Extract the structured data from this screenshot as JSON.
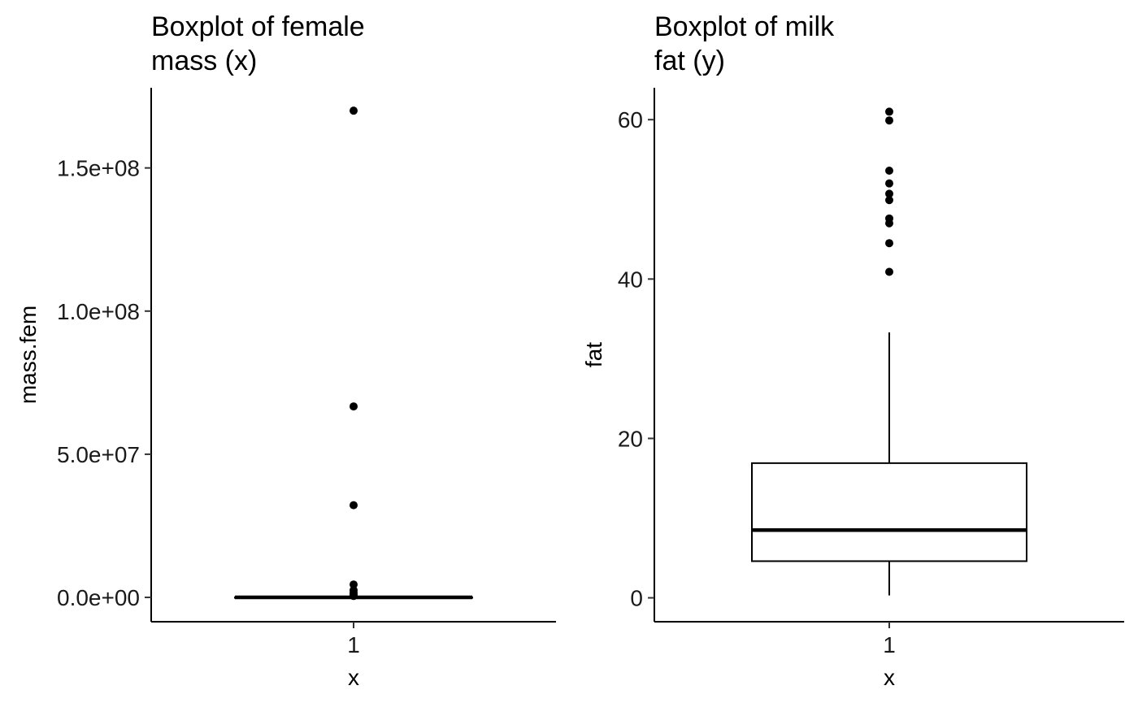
{
  "chart_data": [
    {
      "type": "boxplot",
      "title_lines": [
        "Boxplot of female",
        "mass (x)"
      ],
      "xlabel": "x",
      "ylabel": "mass.fem",
      "categories": [
        "1"
      ],
      "ylim": [
        -8500000,
        178000000
      ],
      "yticks": [
        0,
        50000000,
        100000000,
        150000000
      ],
      "ytick_labels": [
        "0.0e+00",
        "5.0e+07",
        "1.0e+08",
        "1.5e+08"
      ],
      "box": {
        "whisker_low": 0,
        "q1": 0,
        "median": 0,
        "q3": 0,
        "whisker_high": 0
      },
      "outliers": [
        170000000,
        66700000,
        32200000,
        4500000,
        2500000,
        1600000,
        1000000,
        500000
      ]
    },
    {
      "type": "boxplot",
      "title_lines": [
        "Boxplot of milk",
        "fat (y)"
      ],
      "xlabel": "x",
      "ylabel": "fat",
      "categories": [
        "1"
      ],
      "ylim": [
        -3,
        64
      ],
      "yticks": [
        0,
        20,
        40,
        60
      ],
      "ytick_labels": [
        "0",
        "20",
        "40",
        "60"
      ],
      "box": {
        "whisker_low": 0.3,
        "q1": 4.6,
        "median": 8.5,
        "q3": 16.9,
        "whisker_high": 33.3
      },
      "outliers": [
        61.0,
        59.9,
        53.6,
        52.0,
        50.7,
        49.9,
        47.6,
        47.0,
        44.5,
        40.9
      ]
    }
  ]
}
